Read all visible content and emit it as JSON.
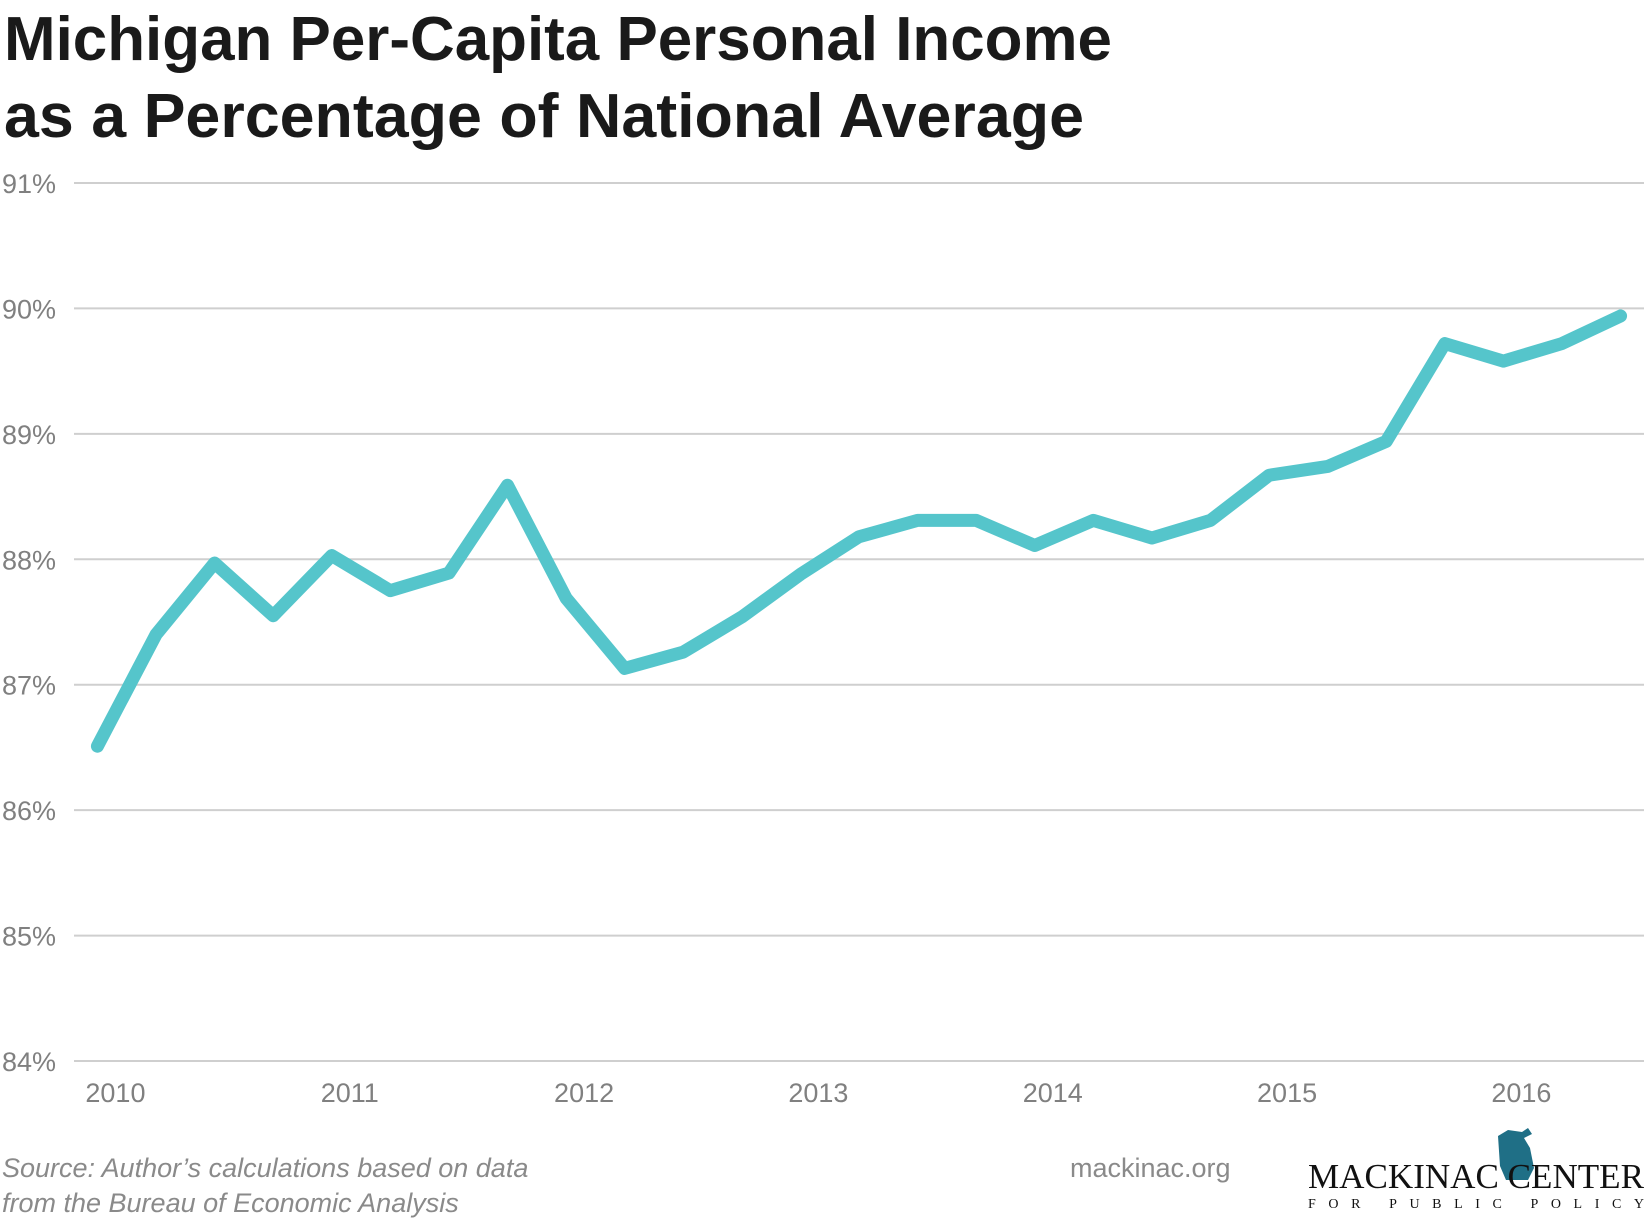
{
  "chart_data": {
    "type": "line",
    "title": [
      "Michigan Per-Capita Personal Income",
      "as a Percentage of National Average"
    ],
    "x": [
      2010,
      2010.25,
      2010.5,
      2010.75,
      2011,
      2011.25,
      2011.5,
      2011.75,
      2012,
      2012.25,
      2012.5,
      2012.75,
      2013,
      2013.25,
      2013.5,
      2013.75,
      2014,
      2014.25,
      2014.5,
      2014.75,
      2015,
      2015.25,
      2015.5,
      2015.75,
      2016,
      2016.25,
      2016.5
    ],
    "series": [
      {
        "name": "Michigan",
        "color": "#55c5cb",
        "values": [
          86.51,
          87.4,
          87.97,
          87.55,
          88.03,
          87.75,
          87.89,
          88.59,
          87.69,
          87.13,
          87.26,
          87.54,
          87.88,
          88.18,
          88.31,
          88.31,
          88.11,
          88.31,
          88.17,
          88.31,
          88.67,
          88.74,
          88.94,
          89.72,
          89.58,
          89.72,
          89.94
        ]
      }
    ],
    "xlim": [
      2009.9,
      2016.6
    ],
    "xticks": [
      2010,
      2011,
      2012,
      2013,
      2014,
      2015,
      2016
    ],
    "ylim": [
      84,
      91
    ],
    "yticks": [
      {
        "value": 84,
        "label": "84%"
      },
      {
        "value": 85,
        "label": "85%"
      },
      {
        "value": 86,
        "label": "86%"
      },
      {
        "value": 87,
        "label": "87%"
      },
      {
        "value": 88,
        "label": "88%"
      },
      {
        "value": 89,
        "label": "89%"
      },
      {
        "value": 90,
        "label": "90%"
      },
      {
        "value": 91,
        "label": "91%"
      }
    ],
    "grid": true,
    "source": [
      "Source: Author’s calculations based on data",
      "from the Bureau of Economic Analysis"
    ],
    "website": "mackinac.org",
    "logo": {
      "name": "MACKINAC CENTER",
      "tagline": "FOR PUBLIC POLICY"
    }
  }
}
